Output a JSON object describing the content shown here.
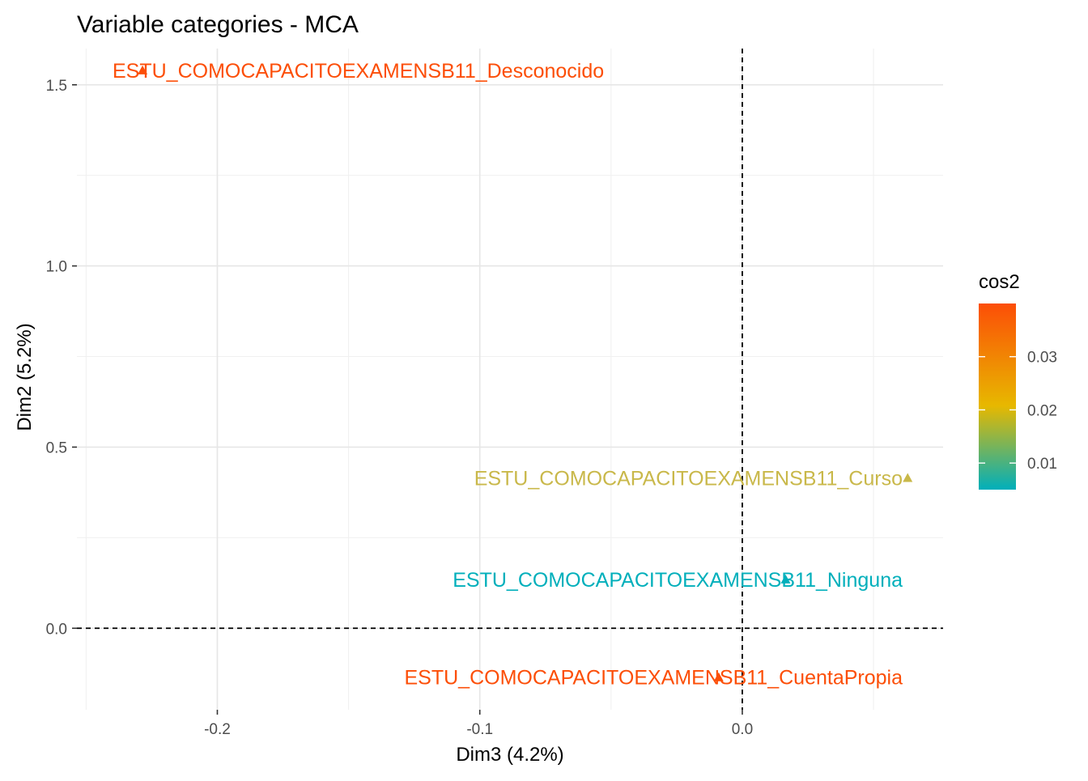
{
  "chart_data": {
    "type": "scatter",
    "title": "Variable categories - MCA",
    "xlabel": "Dim3 (4.2%)",
    "ylabel": "Dim2 (5.2%)",
    "xlim": [
      -0.2535,
      0.0765
    ],
    "ylim": [
      -0.225,
      1.6
    ],
    "x_ticks": [
      -0.2,
      -0.1,
      0.0
    ],
    "x_tick_labels": [
      "-0.2",
      "-0.1",
      "0.0"
    ],
    "y_ticks": [
      0.0,
      0.5,
      1.0,
      1.5
    ],
    "y_tick_labels": [
      "0.0",
      "0.5",
      "1.0",
      "1.5"
    ],
    "x_minor_ticks": [
      -0.25,
      -0.15,
      -0.05,
      0.05
    ],
    "y_minor_ticks": [
      0.25,
      0.75,
      1.25
    ],
    "grid": true,
    "reference_lines": {
      "x": 0,
      "y": 0,
      "style": "dashed"
    },
    "points": [
      {
        "label": "ESTU_COMOCAPACITOEXAMENSB11_Desconocido",
        "x": -0.2285,
        "y": 1.54,
        "cos2": 0.04,
        "color": "#FC4E07"
      },
      {
        "label": "ESTU_COMOCAPACITOEXAMENSB11_Curso",
        "x": 0.063,
        "y": 0.415,
        "cos2": 0.016,
        "color": "#C9B84A"
      },
      {
        "label": "ESTU_COMOCAPACITOEXAMENSB11_Ninguna",
        "x": 0.0165,
        "y": 0.135,
        "cos2": 0.005,
        "color": "#00AFBB"
      },
      {
        "label": "ESTU_COMOCAPACITOEXAMENSB11_CuentaPropia",
        "x": -0.009,
        "y": -0.135,
        "cos2": 0.04,
        "color": "#FC4E07"
      }
    ],
    "legend": {
      "title": "cos2",
      "placement": "right",
      "range": [
        0.005,
        0.04
      ],
      "ticks": [
        0.01,
        0.02,
        0.03
      ],
      "tick_labels": [
        "0.01",
        "0.02",
        "0.03"
      ],
      "gradient_colors": [
        "#00AFBB",
        "#E7B800",
        "#FC4E07"
      ]
    }
  }
}
